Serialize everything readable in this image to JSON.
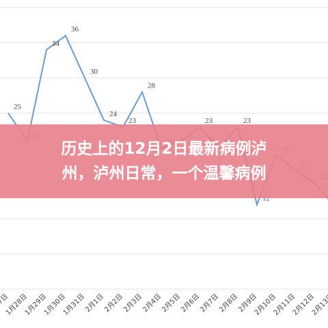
{
  "chart_data": {
    "type": "line",
    "categories": [
      "1月27日",
      "1月28日",
      "1月29日",
      "1月30日",
      "1月31日",
      "2月1日",
      "2月2日",
      "2月3日",
      "2月4日",
      "2月5日",
      "2月6日",
      "2月7日",
      "2月8日",
      "2月9日",
      "2月10日",
      "2月11日",
      "2月12日",
      "2月13日"
    ],
    "values": [
      25,
      21,
      34,
      36,
      30,
      24,
      23,
      28,
      20,
      21,
      23,
      20,
      23,
      12,
      19,
      17,
      15,
      12
    ],
    "color": "#6a9bd1",
    "ylim": [
      0,
      40
    ],
    "yticks": [
      0,
      5,
      10,
      15,
      20,
      25,
      30,
      35,
      40
    ],
    "grid": true
  },
  "banner": {
    "lines": [
      "历史上的12月2日最新病例泸",
      "州，泸州日常，一个温馨病例"
    ]
  }
}
